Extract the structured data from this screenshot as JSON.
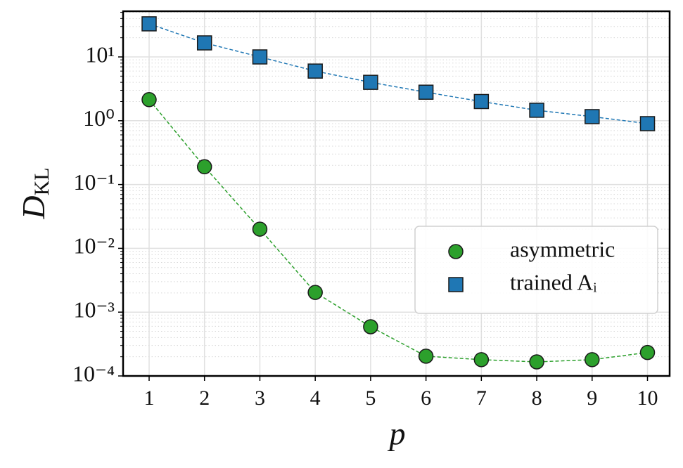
{
  "chart_data": {
    "type": "line",
    "x_label": "p",
    "y_label": "D",
    "y_label_subscript": "KL",
    "x": [
      1,
      2,
      3,
      4,
      5,
      6,
      7,
      8,
      9,
      10
    ],
    "series": [
      {
        "name": "asymmetric",
        "color": "#2ca02c",
        "marker": "circle",
        "values": [
          2.14,
          0.19,
          0.02,
          0.00204,
          0.00059,
          0.000204,
          0.00018,
          0.000166,
          0.00018,
          0.000233
        ]
      },
      {
        "name": "trained Aᵢ",
        "color": "#1f77b4",
        "marker": "square",
        "values": [
          33,
          16.6,
          10,
          6.0,
          4.0,
          2.8,
          2.0,
          1.46,
          1.16,
          0.9
        ]
      }
    ],
    "xlim": [
      0.53,
      10.4
    ],
    "xticks": [
      1,
      2,
      3,
      4,
      5,
      6,
      7,
      8,
      9,
      10
    ],
    "ylim": [
      0.0001,
      52
    ],
    "ylog": true,
    "yticks": [
      {
        "value": 0.0001,
        "label": "10⁻⁴"
      },
      {
        "value": 0.001,
        "label": "10⁻³"
      },
      {
        "value": 0.01,
        "label": "10⁻²"
      },
      {
        "value": 0.1,
        "label": "10⁻¹"
      },
      {
        "value": 1,
        "label": "10⁰"
      },
      {
        "value": 10,
        "label": "10¹"
      }
    ],
    "yminorticks": [
      0.0002,
      0.0003,
      0.0004,
      0.0005,
      0.0006,
      0.0007,
      0.0008,
      0.0009,
      0.002,
      0.003,
      0.004,
      0.005,
      0.006,
      0.007,
      0.008,
      0.009,
      0.02,
      0.03,
      0.04,
      0.05,
      0.06,
      0.07,
      0.08,
      0.09,
      0.2,
      0.3,
      0.4,
      0.5,
      0.6,
      0.7,
      0.8,
      0.9,
      2,
      3,
      4,
      5,
      6,
      7,
      8,
      9,
      20,
      30,
      40,
      50
    ],
    "grid": true,
    "legend": "lower right"
  }
}
